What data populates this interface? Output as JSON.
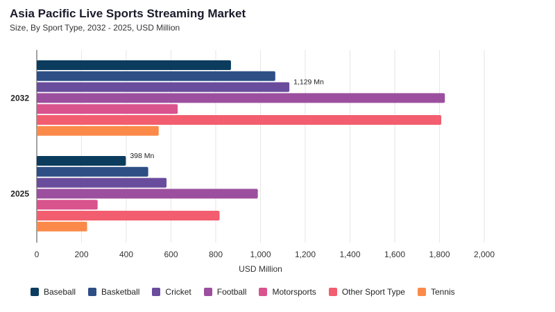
{
  "title": "Asia Pacific Live Sports Streaming Market",
  "subtitle": "Size, By Sport Type, 2032 - 2025, USD Million",
  "chart_data": {
    "type": "bar",
    "orientation": "horizontal",
    "title": "Asia Pacific Live Sports Streaming Market",
    "subtitle": "Size, By Sport Type, 2032 - 2025, USD Million",
    "xlabel": "USD Million",
    "ylabel": "",
    "xlim": [
      0,
      2000
    ],
    "xticks": [
      0,
      200,
      400,
      600,
      800,
      1000,
      1200,
      1400,
      1600,
      1800,
      2000
    ],
    "xtick_labels": [
      "0",
      "200",
      "400",
      "600",
      "800",
      "1,000",
      "1,200",
      "1,400",
      "1,600",
      "1,800",
      "2,000"
    ],
    "categories": [
      "2032",
      "2025"
    ],
    "grid": "vertical",
    "legend_position": "bottom",
    "series": [
      {
        "name": "Baseball",
        "color": "#0b3c5d",
        "values": [
          868,
          398
        ]
      },
      {
        "name": "Basketball",
        "color": "#2d4f85",
        "values": [
          1066,
          498
        ]
      },
      {
        "name": "Cricket",
        "color": "#6a4c9c",
        "values": [
          1129,
          580
        ]
      },
      {
        "name": "Football",
        "color": "#9c4f9e",
        "values": [
          1824,
          988
        ]
      },
      {
        "name": "Motorsports",
        "color": "#d9538d",
        "values": [
          630,
          272
        ]
      },
      {
        "name": "Other Sport Type",
        "color": "#f25e6f",
        "values": [
          1808,
          817
        ]
      },
      {
        "name": "Tennis",
        "color": "#fb8a4a",
        "values": [
          545,
          225
        ]
      }
    ],
    "annotations": [
      {
        "category": "2032",
        "series": "Cricket",
        "text": "1,129 Mn"
      },
      {
        "category": "2025",
        "series": "Baseball",
        "text": "398 Mn"
      }
    ]
  }
}
